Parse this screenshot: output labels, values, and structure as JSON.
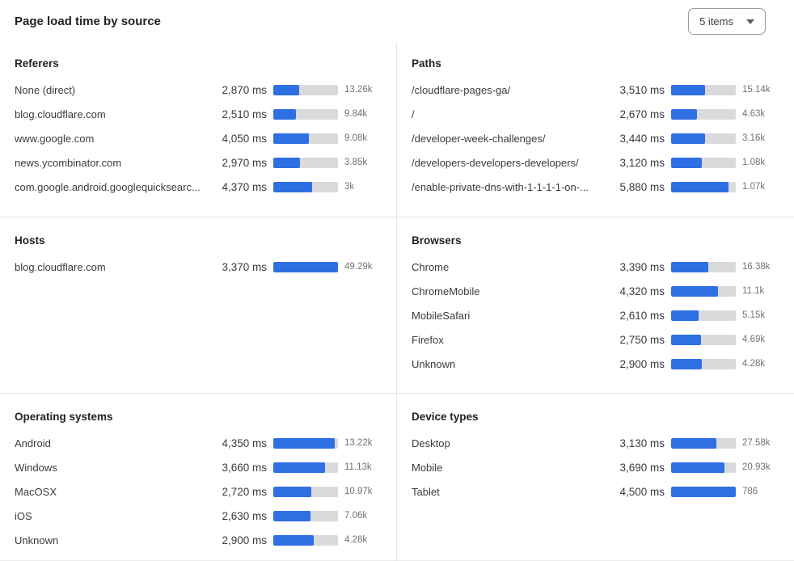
{
  "header": {
    "title": "Page load time by source",
    "items_selector_label": "5 items"
  },
  "colors": {
    "bar_fill": "#2f6fe4",
    "bar_track": "#d9dadb",
    "divider": "#e4e4e4",
    "title_text": "#1e2124",
    "label_text": "#383c3f",
    "count_text": "#6f7376"
  },
  "chart_data": [
    {
      "type": "bar",
      "title": "Referers",
      "unit": "ms",
      "rows": [
        {
          "label": "None (direct)",
          "ms": "2,870 ms",
          "count": "13.26k",
          "pct": 40
        },
        {
          "label": "blog.cloudflare.com",
          "ms": "2,510 ms",
          "count": "9.84k",
          "pct": 35
        },
        {
          "label": "www.google.com",
          "ms": "4,050 ms",
          "count": "9.08k",
          "pct": 55
        },
        {
          "label": "news.ycombinator.com",
          "ms": "2,970 ms",
          "count": "3.85k",
          "pct": 41
        },
        {
          "label": "com.google.android.googlequicksearc...",
          "ms": "4,370 ms",
          "count": "3k",
          "pct": 60
        }
      ]
    },
    {
      "type": "bar",
      "title": "Paths",
      "unit": "ms",
      "rows": [
        {
          "label": "/cloudflare-pages-ga/",
          "ms": "3,510 ms",
          "count": "15.14k",
          "pct": 53
        },
        {
          "label": "/",
          "ms": "2,670 ms",
          "count": "4.63k",
          "pct": 40
        },
        {
          "label": "/developer-week-challenges/",
          "ms": "3,440 ms",
          "count": "3.16k",
          "pct": 52
        },
        {
          "label": "/developers-developers-developers/",
          "ms": "3,120 ms",
          "count": "1.08k",
          "pct": 47
        },
        {
          "label": "/enable-private-dns-with-1-1-1-1-on-...",
          "ms": "5,880 ms",
          "count": "1.07k",
          "pct": 89
        }
      ]
    },
    {
      "type": "bar",
      "title": "Hosts",
      "unit": "ms",
      "rows": [
        {
          "label": "blog.cloudflare.com",
          "ms": "3,370 ms",
          "count": "49.29k",
          "pct": 100
        }
      ]
    },
    {
      "type": "bar",
      "title": "Browsers",
      "unit": "ms",
      "rows": [
        {
          "label": "Chrome",
          "ms": "3,390 ms",
          "count": "16.38k",
          "pct": 57
        },
        {
          "label": "ChromeMobile",
          "ms": "4,320 ms",
          "count": "11.1k",
          "pct": 72
        },
        {
          "label": "MobileSafari",
          "ms": "2,610 ms",
          "count": "5.15k",
          "pct": 43
        },
        {
          "label": "Firefox",
          "ms": "2,750 ms",
          "count": "4.69k",
          "pct": 46
        },
        {
          "label": "Unknown",
          "ms": "2,900 ms",
          "count": "4.28k",
          "pct": 48
        }
      ]
    },
    {
      "type": "bar",
      "title": "Operating systems",
      "unit": "ms",
      "rows": [
        {
          "label": "Android",
          "ms": "4,350 ms",
          "count": "13.22k",
          "pct": 95
        },
        {
          "label": "Windows",
          "ms": "3,660 ms",
          "count": "11.13k",
          "pct": 80
        },
        {
          "label": "MacOSX",
          "ms": "2,720 ms",
          "count": "10.97k",
          "pct": 59
        },
        {
          "label": "iOS",
          "ms": "2,630 ms",
          "count": "7.06k",
          "pct": 57
        },
        {
          "label": "Unknown",
          "ms": "2,900 ms",
          "count": "4.28k",
          "pct": 63
        }
      ]
    },
    {
      "type": "bar",
      "title": "Device types",
      "unit": "ms",
      "rows": [
        {
          "label": "Desktop",
          "ms": "3,130 ms",
          "count": "27.58k",
          "pct": 70
        },
        {
          "label": "Mobile",
          "ms": "3,690 ms",
          "count": "20.93k",
          "pct": 82
        },
        {
          "label": "Tablet",
          "ms": "4,500 ms",
          "count": "786",
          "pct": 100
        }
      ]
    }
  ]
}
